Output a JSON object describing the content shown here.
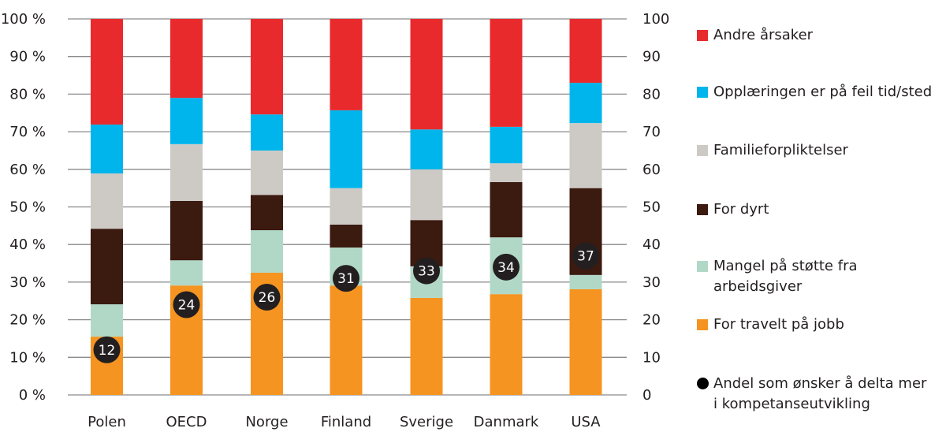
{
  "chart_data": {
    "type": "bar",
    "stacked": true,
    "title": "",
    "xlabel": "",
    "ylabel": "",
    "ylim": [
      0,
      100
    ],
    "y_ticks_left": [
      "0 %",
      "10 %",
      "20 %",
      "30 %",
      "40 %",
      "50 %",
      "60 %",
      "70 %",
      "80 %",
      "90 %",
      "100 %"
    ],
    "y_ticks_right": [
      "0",
      "10",
      "20",
      "30",
      "40",
      "50",
      "60",
      "70",
      "80",
      "90",
      "100"
    ],
    "grid": true,
    "legend_position": "right",
    "categories": [
      "Polen",
      "OECD",
      "Norge",
      "Finland",
      "Sverige",
      "Danmark",
      "USA"
    ],
    "series": [
      {
        "name": "For travelt på jobb",
        "color": "#f59420",
        "values": [
          15.5,
          29.1,
          32.5,
          29.1,
          25.8,
          26.8,
          28.1
        ]
      },
      {
        "name": "Mangel på støtte fra arbeidsgiver",
        "color": "#b1d8c7",
        "values": [
          8.6,
          6.7,
          11.3,
          10.1,
          8.4,
          15.1,
          3.8
        ]
      },
      {
        "name": "For dyrt",
        "color": "#3b1a10",
        "values": [
          20.1,
          15.8,
          9.4,
          6.1,
          12.3,
          14.7,
          23.1
        ]
      },
      {
        "name": "Familieforpliktelser",
        "color": "#cdcac6",
        "values": [
          14.7,
          15.1,
          11.8,
          9.7,
          13.5,
          5.0,
          17.3
        ]
      },
      {
        "name": "Opplæringen er på feil tid/sted",
        "color": "#00b5ec",
        "values": [
          13.0,
          12.3,
          9.6,
          20.7,
          10.6,
          9.7,
          10.7
        ]
      },
      {
        "name": "Andre årsaker",
        "color": "#e92a2d",
        "values": [
          28.1,
          21.0,
          25.4,
          24.3,
          29.4,
          28.7,
          17.0
        ]
      }
    ],
    "dots": {
      "name": "Andel som ønsker å delta mer i kompetanseutvikling",
      "color": "#231f20",
      "axis": "right",
      "values": [
        12,
        24,
        26,
        31,
        33,
        34,
        37
      ]
    }
  },
  "legend": {
    "items": [
      {
        "label": "Andre årsaker",
        "color": "#e92a2d",
        "kind": "square"
      },
      {
        "label": "Opplæringen er på feil tid/sted",
        "color": "#00b5ec",
        "kind": "square"
      },
      {
        "label": "Familieforpliktelser",
        "color": "#cdcac6",
        "kind": "square"
      },
      {
        "label": "For dyrt",
        "color": "#3b1a10",
        "kind": "square"
      },
      {
        "label": "Mangel på støtte fra arbeidsgiver",
        "color": "#b1d8c7",
        "kind": "square"
      },
      {
        "label": "For travelt på jobb",
        "color": "#f59420",
        "kind": "square"
      },
      {
        "label": "Andel som ønsker å delta mer i kompetanseutvikling",
        "color": "#000000",
        "kind": "dot"
      }
    ]
  }
}
